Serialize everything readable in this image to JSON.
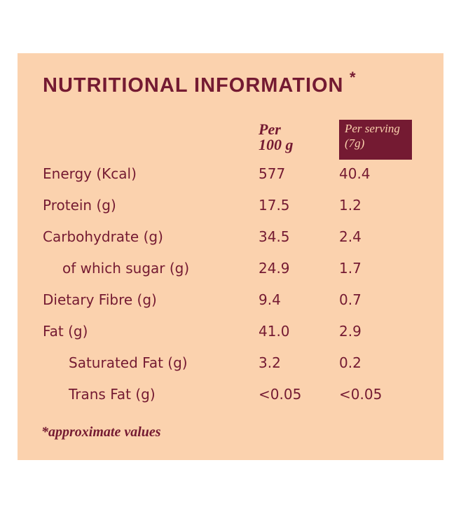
{
  "title": "NUTRITIONAL INFORMATION",
  "title_marker": "*",
  "columns": {
    "per_100g_line1": "Per",
    "per_100g_line2": "100 g",
    "per_serving_line1": "Per serving",
    "per_serving_line2": "(7g)"
  },
  "rows": [
    {
      "label": "Energy (Kcal)",
      "per_100g": "577",
      "per_serving": "40.4"
    },
    {
      "label": "Protein (g)",
      "per_100g": "17.5",
      "per_serving": "1.2"
    },
    {
      "label": "Carbohydrate (g)",
      "per_100g": "34.5",
      "per_serving": "2.4"
    },
    {
      "label": "of which sugar (g)",
      "per_100g": "24.9",
      "per_serving": "1.7"
    },
    {
      "label": "Dietary Fibre (g)",
      "per_100g": "9.4",
      "per_serving": "0.7"
    },
    {
      "label": "Fat (g)",
      "per_100g": "41.0",
      "per_serving": "2.9"
    },
    {
      "label": "Saturated Fat (g)",
      "per_100g": "3.2",
      "per_serving": "0.2"
    },
    {
      "label": "Trans Fat (g)",
      "per_100g": "<0.05",
      "per_serving": "<0.05"
    }
  ],
  "footnote": "*approximate values",
  "colors": {
    "background": "#fbd2ae",
    "text": "#741a32",
    "header_box": "#741a32"
  }
}
